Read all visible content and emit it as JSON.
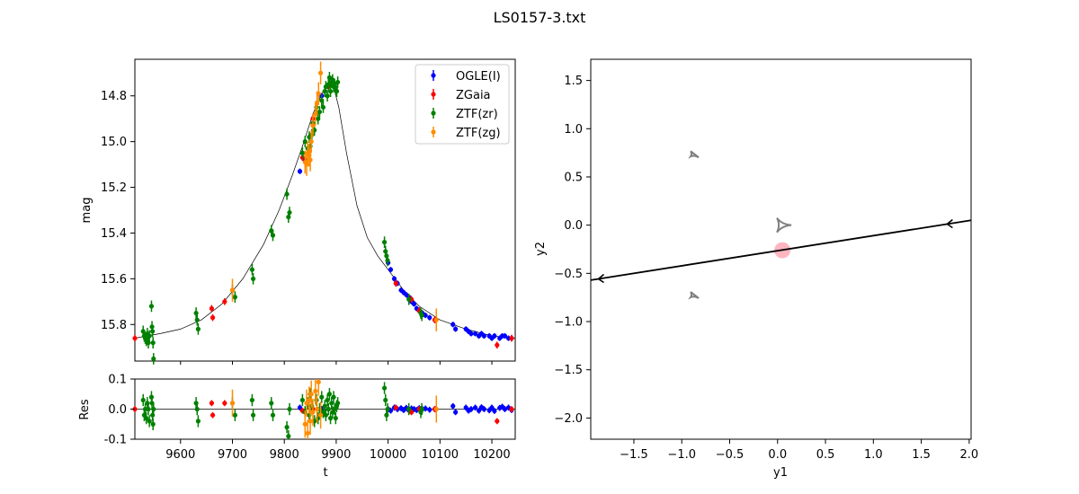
{
  "figure": {
    "title": "LS0157-3.txt"
  },
  "colors": {
    "OGLE": "#0000ff",
    "ZGaia": "#ff0000",
    "ZTFzr": "#008000",
    "ZTFzg": "#ff8c00",
    "model": "#000000",
    "caustic": "#808080",
    "source": "#ffb6c1",
    "trajectory": "#000000"
  },
  "chart_data": [
    {
      "id": "lightcurve",
      "type": "scatter",
      "title": "",
      "xlabel": "",
      "ylabel": "mag",
      "xlim": [
        9512,
        10245
      ],
      "ylim": [
        15.96,
        14.64
      ],
      "y_inverted": true,
      "yticks": [
        14.8,
        15.0,
        15.2,
        15.4,
        15.6,
        15.8
      ],
      "legend": {
        "placement": "top-right",
        "entries": [
          "OGLE(I)",
          "ZGaia",
          "ZTF(zr)",
          "ZTF(zg)"
        ]
      },
      "series": [
        {
          "name": "OGLE(I)",
          "color_key": "OGLE",
          "points": [
            [
              9830,
              15.13
            ],
            [
              9840,
              15.08
            ],
            [
              9872,
              14.8
            ],
            [
              9885,
              14.76
            ],
            [
              10000,
              15.53
            ],
            [
              10005,
              15.56
            ],
            [
              10012,
              15.6
            ],
            [
              10018,
              15.62
            ],
            [
              10025,
              15.65
            ],
            [
              10030,
              15.66
            ],
            [
              10035,
              15.67
            ],
            [
              10040,
              15.68
            ],
            [
              10045,
              15.7
            ],
            [
              10050,
              15.71
            ],
            [
              10055,
              15.73
            ],
            [
              10060,
              15.74
            ],
            [
              10066,
              15.75
            ],
            [
              10072,
              15.76
            ],
            [
              10080,
              15.77
            ],
            [
              10090,
              15.78
            ],
            [
              10125,
              15.8
            ],
            [
              10130,
              15.82
            ],
            [
              10150,
              15.82
            ],
            [
              10155,
              15.83
            ],
            [
              10160,
              15.84
            ],
            [
              10168,
              15.84
            ],
            [
              10175,
              15.85
            ],
            [
              10180,
              15.84
            ],
            [
              10185,
              15.85
            ],
            [
              10195,
              15.85
            ],
            [
              10200,
              15.86
            ],
            [
              10205,
              15.85
            ],
            [
              10215,
              15.86
            ],
            [
              10220,
              15.85
            ],
            [
              10225,
              15.85
            ],
            [
              10232,
              15.86
            ],
            [
              10238,
              15.86
            ]
          ],
          "err": 0.012
        },
        {
          "name": "ZGaia",
          "color_key": "ZGaia",
          "points": [
            [
              9512,
              15.86
            ],
            [
              9660,
              15.73
            ],
            [
              9662,
              15.77
            ],
            [
              9685,
              15.7
            ],
            [
              9835,
              15.07
            ],
            [
              9855,
              14.9
            ],
            [
              9885,
              14.76
            ],
            [
              10015,
              15.62
            ],
            [
              10045,
              15.69
            ],
            [
              10060,
              15.74
            ],
            [
              10090,
              15.78
            ],
            [
              10210,
              15.89
            ],
            [
              10238,
              15.86
            ]
          ],
          "err": 0.015
        },
        {
          "name": "ZTF(zr)",
          "color_key": "ZTFzr",
          "points": [
            [
              9528,
              15.83
            ],
            [
              9530,
              15.85
            ],
            [
              9532,
              15.86
            ],
            [
              9534,
              15.87
            ],
            [
              9536,
              15.84
            ],
            [
              9538,
              15.88
            ],
            [
              9540,
              15.85
            ],
            [
              9544,
              15.72
            ],
            [
              9545,
              15.81
            ],
            [
              9546,
              15.83
            ],
            [
              9547,
              15.88
            ],
            [
              9548,
              15.95
            ],
            [
              9630,
              15.75
            ],
            [
              9632,
              15.78
            ],
            [
              9634,
              15.82
            ],
            [
              9700,
              15.65
            ],
            [
              9705,
              15.68
            ],
            [
              9738,
              15.56
            ],
            [
              9740,
              15.6
            ],
            [
              9775,
              15.39
            ],
            [
              9778,
              15.41
            ],
            [
              9805,
              15.23
            ],
            [
              9808,
              15.33
            ],
            [
              9810,
              15.31
            ],
            [
              9835,
              15.05
            ],
            [
              9840,
              15.0
            ],
            [
              9845,
              15.03
            ],
            [
              9848,
              14.98
            ],
            [
              9850,
              15.02
            ],
            [
              9853,
              14.97
            ],
            [
              9855,
              14.92
            ],
            [
              9858,
              14.95
            ],
            [
              9862,
              14.85
            ],
            [
              9865,
              14.9
            ],
            [
              9868,
              14.87
            ],
            [
              9872,
              14.82
            ],
            [
              9875,
              14.85
            ],
            [
              9878,
              14.78
            ],
            [
              9880,
              14.76
            ],
            [
              9883,
              14.8
            ],
            [
              9885,
              14.75
            ],
            [
              9887,
              14.72
            ],
            [
              9889,
              14.78
            ],
            [
              9891,
              14.74
            ],
            [
              9893,
              14.73
            ],
            [
              9895,
              14.76
            ],
            [
              9897,
              14.75
            ],
            [
              9899,
              14.77
            ],
            [
              9901,
              14.78
            ],
            [
              9903,
              14.74
            ],
            [
              9993,
              15.44
            ],
            [
              9995,
              15.48
            ],
            [
              9997,
              15.5
            ],
            [
              9999,
              15.52
            ],
            [
              10040,
              15.69
            ],
            [
              10063,
              15.75
            ],
            [
              10065,
              15.76
            ]
          ],
          "err": 0.025
        },
        {
          "name": "ZTF(zg)",
          "color_key": "ZTFzg",
          "points": [
            [
              9700,
              15.65
            ],
            [
              9840,
              15.09
            ],
            [
              9843,
              15.1
            ],
            [
              9845,
              15.05
            ],
            [
              9848,
              15.06
            ],
            [
              9850,
              15.08
            ],
            [
              9852,
              15.0
            ],
            [
              9855,
              14.93
            ],
            [
              9860,
              14.88
            ],
            [
              9863,
              14.83
            ],
            [
              9866,
              14.79
            ],
            [
              9870,
              14.7
            ],
            [
              10093,
              15.78
            ]
          ],
          "err": 0.05
        }
      ]
    },
    {
      "id": "residuals",
      "type": "scatter",
      "xlabel": "t",
      "ylabel": "Res",
      "xlim": [
        9512,
        10245
      ],
      "ylim": [
        -0.1,
        0.1
      ],
      "xticks": [
        9600,
        9700,
        9800,
        9900,
        10000,
        10100,
        10200
      ],
      "yticks": [
        -0.1,
        0.0,
        0.1
      ],
      "series": [
        {
          "name": "OGLE(I)",
          "color_key": "OGLE",
          "points": [
            [
              9830,
              0.005
            ],
            [
              9872,
              0.0
            ],
            [
              10000,
              0.0
            ],
            [
              10005,
              -0.005
            ],
            [
              10012,
              0.005
            ],
            [
              10018,
              0.0
            ],
            [
              10025,
              0.003
            ],
            [
              10030,
              -0.003
            ],
            [
              10035,
              0.004
            ],
            [
              10040,
              -0.004
            ],
            [
              10045,
              0.002
            ],
            [
              10050,
              0.0
            ],
            [
              10055,
              -0.003
            ],
            [
              10060,
              0.003
            ],
            [
              10066,
              0.0
            ],
            [
              10072,
              0.002
            ],
            [
              10080,
              -0.002
            ],
            [
              10090,
              0.0
            ],
            [
              10125,
              0.01
            ],
            [
              10130,
              -0.01
            ],
            [
              10150,
              0.005
            ],
            [
              10155,
              -0.005
            ],
            [
              10160,
              0.0
            ],
            [
              10168,
              0.005
            ],
            [
              10175,
              -0.005
            ],
            [
              10180,
              0.006
            ],
            [
              10185,
              0.0
            ],
            [
              10195,
              -0.004
            ],
            [
              10200,
              0.005
            ],
            [
              10205,
              -0.006
            ],
            [
              10215,
              0.004
            ],
            [
              10220,
              0.008
            ],
            [
              10225,
              0.0
            ],
            [
              10232,
              0.005
            ],
            [
              10238,
              -0.003
            ]
          ],
          "err": 0.01
        },
        {
          "name": "ZGaia",
          "color_key": "ZGaia",
          "points": [
            [
              9512,
              0.0
            ],
            [
              9660,
              0.02
            ],
            [
              9662,
              -0.02
            ],
            [
              9685,
              0.02
            ],
            [
              9835,
              -0.005
            ],
            [
              9855,
              0.0
            ],
            [
              9885,
              0.0
            ],
            [
              10015,
              0.005
            ],
            [
              10045,
              -0.01
            ],
            [
              10060,
              0.0
            ],
            [
              10090,
              0.0
            ],
            [
              10210,
              -0.04
            ],
            [
              10238,
              0.0
            ]
          ],
          "err": 0.01
        },
        {
          "name": "ZTF(zr)",
          "color_key": "ZTFzr",
          "points": [
            [
              9528,
              0.03
            ],
            [
              9530,
              -0.02
            ],
            [
              9532,
              0.0
            ],
            [
              9534,
              -0.03
            ],
            [
              9536,
              0.02
            ],
            [
              9538,
              0.0
            ],
            [
              9540,
              -0.04
            ],
            [
              9544,
              0.04
            ],
            [
              9545,
              0.02
            ],
            [
              9546,
              -0.02
            ],
            [
              9547,
              -0.05
            ],
            [
              9548,
              0.0
            ],
            [
              9630,
              0.02
            ],
            [
              9632,
              0.0
            ],
            [
              9634,
              -0.04
            ],
            [
              9700,
              0.02
            ],
            [
              9705,
              -0.02
            ],
            [
              9738,
              0.03
            ],
            [
              9740,
              -0.02
            ],
            [
              9775,
              0.02
            ],
            [
              9778,
              -0.02
            ],
            [
              9805,
              -0.06
            ],
            [
              9808,
              -0.09
            ],
            [
              9810,
              0.0
            ],
            [
              9835,
              0.03
            ],
            [
              9840,
              -0.01
            ],
            [
              9845,
              0.02
            ],
            [
              9848,
              -0.02
            ],
            [
              9850,
              0.05
            ],
            [
              9853,
              0.01
            ],
            [
              9858,
              -0.04
            ],
            [
              9862,
              0.03
            ],
            [
              9865,
              -0.03
            ],
            [
              9868,
              0.0
            ],
            [
              9872,
              0.04
            ],
            [
              9875,
              -0.01
            ],
            [
              9878,
              0.01
            ],
            [
              9880,
              -0.02
            ],
            [
              9883,
              0.03
            ],
            [
              9885,
              0.0
            ],
            [
              9887,
              0.05
            ],
            [
              9889,
              -0.03
            ],
            [
              9891,
              0.02
            ],
            [
              9893,
              -0.01
            ],
            [
              9895,
              0.04
            ],
            [
              9897,
              0.0
            ],
            [
              9899,
              -0.03
            ],
            [
              9901,
              0.01
            ],
            [
              9903,
              0.02
            ],
            [
              9993,
              0.07
            ],
            [
              9995,
              0.03
            ],
            [
              9997,
              -0.02
            ],
            [
              9999,
              0.0
            ],
            [
              10040,
              0.0
            ],
            [
              10063,
              -0.01
            ],
            [
              10065,
              0.0
            ]
          ],
          "err": 0.02
        },
        {
          "name": "ZTF(zg)",
          "color_key": "ZTFzg",
          "points": [
            [
              9700,
              0.02
            ],
            [
              9840,
              -0.05
            ],
            [
              9843,
              0.02
            ],
            [
              9845,
              -0.08
            ],
            [
              9848,
              0.03
            ],
            [
              9850,
              -0.04
            ],
            [
              9852,
              0.05
            ],
            [
              9855,
              -0.01
            ],
            [
              9860,
              0.06
            ],
            [
              9863,
              0.0
            ],
            [
              9866,
              0.09
            ],
            [
              9870,
              -0.02
            ],
            [
              10093,
              0.0
            ]
          ],
          "err": 0.045
        }
      ]
    },
    {
      "id": "caustic",
      "type": "line",
      "xlabel": "y1",
      "ylabel": "y2",
      "xlim": [
        -1.95,
        2.02
      ],
      "ylim": [
        -2.22,
        1.72
      ],
      "xticks": [
        -1.5,
        -1.0,
        -0.5,
        0.0,
        0.5,
        1.0,
        1.5,
        2.0
      ],
      "yticks": [
        -2.0,
        -1.5,
        -1.0,
        -0.5,
        0.0,
        0.5,
        1.0,
        1.5
      ],
      "trajectory": {
        "from": [
          2.02,
          0.05
        ],
        "to": [
          -1.95,
          -0.57
        ],
        "arrows_at": [
          1.77,
          -1.87
        ]
      },
      "source": {
        "y1": 0.05,
        "y2": -0.26
      },
      "caustics": [
        {
          "shape": "central",
          "center": [
            0.05,
            0.0
          ]
        },
        {
          "shape": "planetary",
          "center": [
            -0.87,
            0.73
          ]
        },
        {
          "shape": "planetary",
          "center": [
            -0.87,
            -0.73
          ]
        }
      ]
    }
  ]
}
